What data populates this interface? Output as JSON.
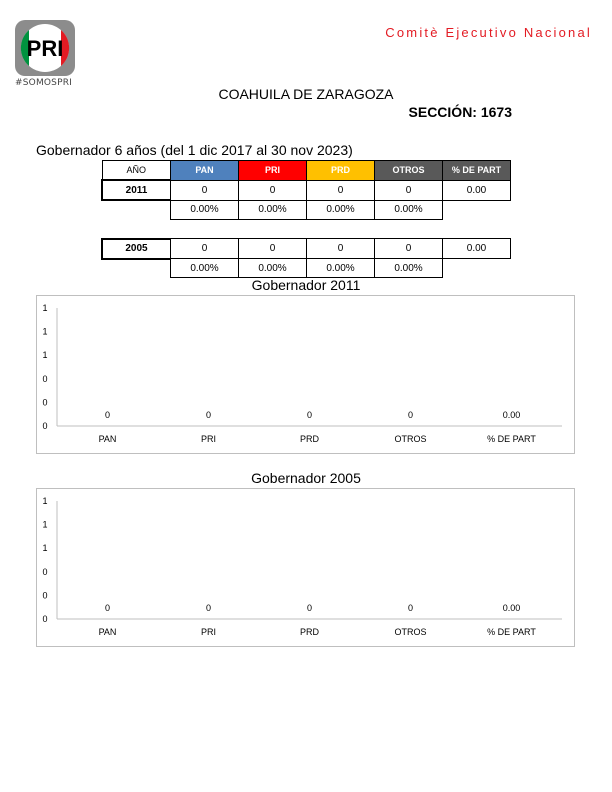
{
  "header": {
    "logo_text": "PRI",
    "logo_tag": "#SOMOSPRI",
    "committee": "Comitè Ejecutivo Nacional",
    "state": "COAHUILA DE ZARAGOZA",
    "section": "SECCIÓN: 1673"
  },
  "colors": {
    "PAN": "#4f81bd",
    "PRI": "#ff0000",
    "PRD": "#ffc000",
    "OTROS": "#595959",
    "PART": "#595959",
    "brand_red": "#e31b23"
  },
  "election_title": "Gobernador 6 años (del 1 dic 2017 al 30 nov 2023)",
  "table": {
    "headers": [
      "AÑO",
      "PAN",
      "PRI",
      "PRD",
      "OTROS",
      "% DE PART"
    ],
    "rows": [
      {
        "year": "2011",
        "votes": [
          "0",
          "0",
          "0",
          "0"
        ],
        "part": "0.00",
        "pcts": [
          "0.00%",
          "0.00%",
          "0.00%",
          "0.00%"
        ]
      },
      {
        "year": "2005",
        "votes": [
          "0",
          "0",
          "0",
          "0"
        ],
        "part": "0.00",
        "pcts": [
          "0.00%",
          "0.00%",
          "0.00%",
          "0.00%"
        ]
      }
    ]
  },
  "chart_data": [
    {
      "type": "bar",
      "title": "Gobernador  2011",
      "categories": [
        "PAN",
        "PRI",
        "PRD",
        "OTROS",
        "% DE PART"
      ],
      "values": [
        0,
        0,
        0,
        0,
        0
      ],
      "value_labels": [
        "0",
        "0",
        "0",
        "0",
        "0.00"
      ],
      "y_tick_labels": [
        "0",
        "0",
        "0",
        "1",
        "1",
        "1"
      ],
      "xlabel": "",
      "ylabel": "",
      "grid": false,
      "legend": "none"
    },
    {
      "type": "bar",
      "title": "Gobernador  2005",
      "categories": [
        "PAN",
        "PRI",
        "PRD",
        "OTROS",
        "% DE PART"
      ],
      "values": [
        0,
        0,
        0,
        0,
        0
      ],
      "value_labels": [
        "0",
        "0",
        "0",
        "0",
        "0.00"
      ],
      "y_tick_labels": [
        "0",
        "0",
        "0",
        "1",
        "1",
        "1"
      ],
      "xlabel": "",
      "ylabel": "",
      "grid": false,
      "legend": "none"
    }
  ]
}
